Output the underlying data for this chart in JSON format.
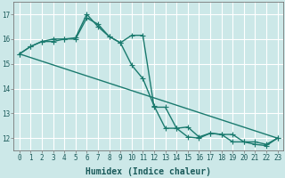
{
  "xlabel": "Humidex (Indice chaleur)",
  "bg_color": "#cce8e8",
  "line_color": "#1a7a6e",
  "grid_color": "#ffffff",
  "series1_y": [
    15.4,
    15.7,
    15.9,
    15.9,
    16.0,
    16.0,
    16.85,
    16.6,
    16.1,
    15.85,
    16.15,
    16.15,
    13.25,
    13.25,
    12.4,
    12.45,
    12.05,
    12.2,
    12.15,
    12.15,
    11.85,
    11.85,
    11.75,
    12.0
  ],
  "series2_y": [
    15.4,
    15.7,
    15.9,
    16.0,
    16.0,
    16.05,
    17.0,
    16.5,
    16.1,
    15.85,
    14.95,
    14.4,
    13.3,
    12.4,
    12.4,
    12.05,
    12.0,
    12.2,
    12.15,
    11.85,
    11.85,
    11.75,
    11.7,
    12.0
  ],
  "series3_x": [
    0,
    23
  ],
  "series3_y": [
    15.4,
    12.0
  ],
  "ylim": [
    11.5,
    17.5
  ],
  "xlim": [
    -0.5,
    23.5
  ],
  "yticks": [
    12,
    13,
    14,
    15,
    16,
    17
  ],
  "xticks": [
    0,
    1,
    2,
    3,
    4,
    5,
    6,
    7,
    8,
    9,
    10,
    11,
    12,
    13,
    14,
    15,
    16,
    17,
    18,
    19,
    20,
    21,
    22,
    23
  ],
  "marker": "+",
  "markersize": 4,
  "linewidth": 1.0,
  "xlabel_fontsize": 7,
  "tick_fontsize": 5.5
}
